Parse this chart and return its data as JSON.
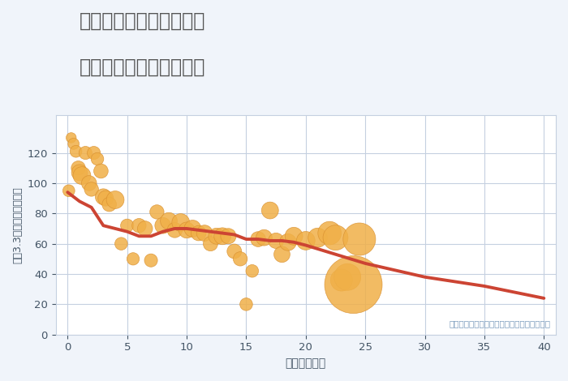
{
  "title_line1": "三重県桑名市星見ヶ丘の",
  "title_line2": "築年数別中古戸建て価格",
  "xlabel": "築年数（年）",
  "ylabel": "坪（3.3㎡）単価（万円）",
  "annotation": "円の大きさは、取引のあった物件面積を示す",
  "bg_color": "#f0f4fa",
  "plot_bg_color": "#ffffff",
  "scatter_color": "#f0b048",
  "scatter_edge_color": "#d99030",
  "line_color": "#cc4433",
  "grid_color": "#c5d0e0",
  "title_color": "#555555",
  "tick_color": "#445566",
  "xlabel_color": "#445566",
  "ylabel_color": "#445566",
  "annotation_color": "#7799bb",
  "xlim": [
    -1,
    41
  ],
  "ylim": [
    0,
    145
  ],
  "xticks": [
    0,
    5,
    10,
    15,
    20,
    25,
    30,
    35,
    40
  ],
  "yticks": [
    0,
    20,
    40,
    60,
    80,
    100,
    120
  ],
  "scatter_x": [
    0.1,
    0.3,
    0.5,
    0.7,
    0.9,
    1.0,
    1.2,
    1.5,
    1.8,
    2.0,
    2.2,
    2.5,
    2.8,
    3.0,
    3.2,
    3.5,
    4.0,
    4.5,
    5.0,
    5.5,
    6.0,
    6.5,
    7.0,
    7.5,
    8.0,
    8.5,
    9.0,
    9.5,
    10.0,
    10.5,
    11.0,
    11.5,
    12.0,
    12.5,
    13.0,
    13.5,
    14.0,
    14.5,
    15.0,
    15.5,
    16.0,
    16.5,
    17.0,
    17.5,
    18.0,
    18.5,
    19.0,
    20.0,
    21.0,
    22.0,
    22.5,
    23.0,
    23.5,
    24.0,
    24.5
  ],
  "scatter_y": [
    95,
    130,
    126,
    121,
    110,
    107,
    105,
    120,
    100,
    96,
    120,
    116,
    108,
    91,
    90,
    86,
    89,
    60,
    72,
    50,
    72,
    70,
    49,
    81,
    72,
    75,
    69,
    74,
    69,
    70,
    67,
    67,
    60,
    65,
    65,
    65,
    55,
    50,
    20,
    42,
    63,
    64,
    82,
    62,
    53,
    61,
    65,
    62,
    64,
    67,
    64,
    36,
    38,
    33,
    63
  ],
  "scatter_size": [
    25,
    18,
    22,
    25,
    35,
    45,
    55,
    30,
    40,
    35,
    30,
    28,
    36,
    45,
    42,
    36,
    55,
    28,
    30,
    27,
    35,
    40,
    30,
    35,
    45,
    50,
    40,
    55,
    45,
    50,
    40,
    45,
    37,
    45,
    50,
    42,
    37,
    35,
    28,
    28,
    40,
    45,
    50,
    42,
    45,
    50,
    55,
    60,
    65,
    95,
    110,
    85,
    125,
    580,
    185
  ],
  "line_x": [
    0,
    1,
    2,
    3,
    4,
    5,
    6,
    7,
    8,
    9,
    10,
    11,
    12,
    13,
    14,
    15,
    16,
    17,
    18,
    19,
    20,
    25,
    30,
    35,
    40
  ],
  "line_y": [
    94,
    88,
    84,
    72,
    70,
    68,
    65,
    65,
    68,
    70,
    70,
    69,
    68,
    67,
    66,
    63,
    63,
    62,
    62,
    61,
    59,
    47,
    38,
    32,
    24
  ]
}
